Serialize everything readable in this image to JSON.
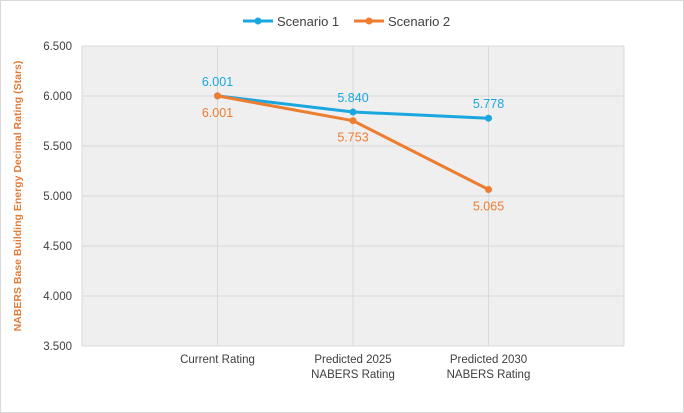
{
  "chart_data": {
    "type": "line",
    "categories": [
      "Current Rating",
      "Predicted 2025 NABERS Rating",
      "Predicted 2030 NABERS Rating"
    ],
    "category_lines": [
      [
        "Current Rating"
      ],
      [
        "Predicted 2025",
        "NABERS Rating"
      ],
      [
        "Predicted 2030",
        "NABERS Rating"
      ]
    ],
    "series": [
      {
        "name": "Scenario 1",
        "values": [
          6.001,
          5.84,
          5.778
        ],
        "labels": [
          "6.001",
          "5.840",
          "5.778"
        ],
        "color": "#1aa7e0"
      },
      {
        "name": "Scenario 2",
        "values": [
          6.001,
          5.753,
          5.065
        ],
        "labels": [
          "6.001",
          "5.753",
          "5.065"
        ],
        "color": "#ed7d31"
      }
    ],
    "ylabel": "NABERS Base Building Energy Decimal Rating (Stars)",
    "ylim": [
      3.5,
      6.5
    ],
    "yticks": [
      "3.500",
      "4.000",
      "4.500",
      "5.000",
      "5.500",
      "6.000",
      "6.500"
    ],
    "grid": true,
    "legend_position": "top"
  }
}
